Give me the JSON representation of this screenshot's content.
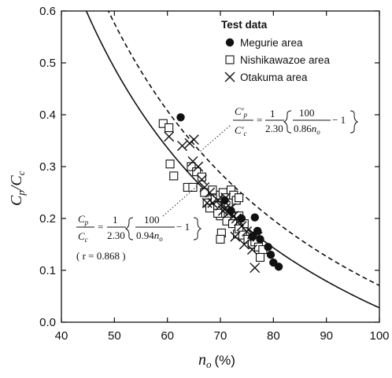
{
  "chart_data": {
    "type": "scatter",
    "xlabel": "n",
    "xlabel_sub": "o",
    "xlabel_unit": "(%)",
    "ylabel": "C",
    "ylabel_sub": "p",
    "ylabel_slash": "/C",
    "ylabel_sub2": "c",
    "xlim": [
      40,
      100
    ],
    "ylim": [
      0.0,
      0.6
    ],
    "xticks": [
      40,
      50,
      60,
      70,
      80,
      90,
      100
    ],
    "yticks": [
      0.0,
      0.1,
      0.2,
      0.3,
      0.4,
      0.5,
      0.6
    ],
    "legend": {
      "title": "Test data",
      "placement": "top-right"
    },
    "series": [
      {
        "name": "Megurie area",
        "marker": "filled-circle",
        "points": [
          [
            62.5,
            0.395
          ],
          [
            70.8,
            0.235
          ],
          [
            72.0,
            0.215
          ],
          [
            74.0,
            0.2
          ],
          [
            76.5,
            0.202
          ],
          [
            77.0,
            0.176
          ],
          [
            76.0,
            0.165
          ],
          [
            77.5,
            0.16
          ],
          [
            79.0,
            0.145
          ],
          [
            79.5,
            0.13
          ],
          [
            80.0,
            0.115
          ],
          [
            81.0,
            0.107
          ]
        ]
      },
      {
        "name": "Nishikawazoe area",
        "marker": "open-square",
        "points": [
          [
            59.2,
            0.383
          ],
          [
            60.3,
            0.375
          ],
          [
            60.5,
            0.305
          ],
          [
            61.2,
            0.282
          ],
          [
            63.8,
            0.26
          ],
          [
            64.5,
            0.3
          ],
          [
            65.5,
            0.29
          ],
          [
            66.5,
            0.28
          ],
          [
            64.8,
            0.26
          ],
          [
            67.0,
            0.25
          ],
          [
            67.5,
            0.23
          ],
          [
            68.0,
            0.22
          ],
          [
            68.5,
            0.255
          ],
          [
            69.0,
            0.238
          ],
          [
            69.5,
            0.225
          ],
          [
            70.0,
            0.245
          ],
          [
            70.5,
            0.25
          ],
          [
            71.0,
            0.24
          ],
          [
            71.5,
            0.23
          ],
          [
            72.0,
            0.255
          ],
          [
            72.5,
            0.245
          ],
          [
            73.0,
            0.235
          ],
          [
            73.5,
            0.24
          ],
          [
            70.0,
            0.205
          ],
          [
            71.2,
            0.195
          ],
          [
            72.3,
            0.19
          ],
          [
            73.5,
            0.205
          ],
          [
            74.5,
            0.19
          ],
          [
            70.2,
            0.172
          ],
          [
            70.0,
            0.16
          ],
          [
            73.2,
            0.17
          ],
          [
            73.5,
            0.18
          ],
          [
            74.2,
            0.168
          ],
          [
            75.2,
            0.16
          ],
          [
            76.0,
            0.15
          ],
          [
            76.5,
            0.155
          ],
          [
            77.2,
            0.145
          ],
          [
            78.0,
            0.14
          ],
          [
            77.5,
            0.125
          ],
          [
            69.5,
            0.21
          ]
        ]
      },
      {
        "name": "Otakuma area",
        "marker": "x",
        "points": [
          [
            60.3,
            0.358
          ],
          [
            62.8,
            0.34
          ],
          [
            64.2,
            0.345
          ],
          [
            65.0,
            0.352
          ],
          [
            64.8,
            0.31
          ],
          [
            65.8,
            0.3
          ],
          [
            66.5,
            0.275
          ],
          [
            67.0,
            0.26
          ],
          [
            68.0,
            0.25
          ],
          [
            67.5,
            0.23
          ],
          [
            68.5,
            0.23
          ],
          [
            69.5,
            0.235
          ],
          [
            70.0,
            0.225
          ],
          [
            71.0,
            0.22
          ],
          [
            70.5,
            0.215
          ],
          [
            71.5,
            0.21
          ],
          [
            72.0,
            0.22
          ],
          [
            72.5,
            0.205
          ],
          [
            73.0,
            0.2
          ],
          [
            73.5,
            0.195
          ],
          [
            74.0,
            0.185
          ],
          [
            75.0,
            0.175
          ],
          [
            76.0,
            0.17
          ],
          [
            77.0,
            0.165
          ],
          [
            76.0,
            0.14
          ],
          [
            76.5,
            0.105
          ],
          [
            74.5,
            0.15
          ],
          [
            72.8,
            0.165
          ],
          [
            71.0,
            0.24
          ]
        ]
      }
    ],
    "curves": [
      {
        "id": "solid",
        "style": "solid",
        "factor": 0.94,
        "equation": {
          "lhs_num": "C",
          "lhs_num_sub": "p",
          "lhs_den": "C",
          "lhs_den_sub": "c",
          "eq": "=",
          "coef_num": "1",
          "coef_den": "2.30",
          "inner_num": "100",
          "inner_den": "0.94",
          "inner_var": "n",
          "inner_var_sub": "o",
          "minus": "− 1",
          "corr": "( r = 0.868 )"
        }
      },
      {
        "id": "dashed",
        "style": "dashed",
        "factor": 0.86,
        "equation": {
          "lhs_num": "C′",
          "lhs_num_sub": "p",
          "lhs_den": "C′",
          "lhs_den_sub": "c",
          "eq": "=",
          "coef_num": "1",
          "coef_den": "2.30",
          "inner_num": "100",
          "inner_den": "0.86",
          "inner_var": "n",
          "inner_var_sub": "o",
          "minus": "− 1"
        }
      }
    ]
  }
}
